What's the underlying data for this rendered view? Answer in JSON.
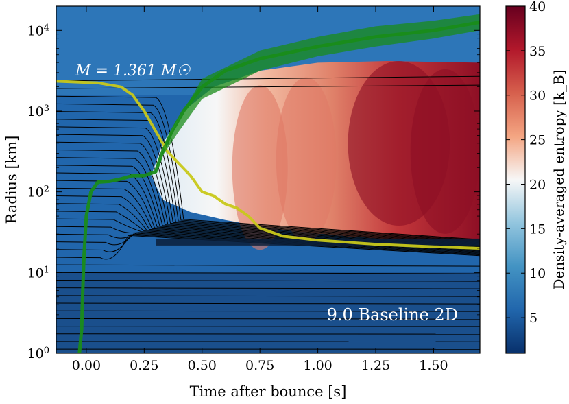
{
  "chart_data": {
    "type": "heatmap",
    "title": "",
    "xlabel": "Time after bounce [s]",
    "ylabel": "Radius [km]",
    "xlim": [
      -0.13,
      1.7
    ],
    "ylim_log10": [
      0,
      4.3
    ],
    "x_ticks": [
      {
        "v": 0.0,
        "label": "0.00"
      },
      {
        "v": 0.25,
        "label": "0.25"
      },
      {
        "v": 0.5,
        "label": "0.50"
      },
      {
        "v": 0.75,
        "label": "0.75"
      },
      {
        "v": 1.0,
        "label": "1.00"
      },
      {
        "v": 1.25,
        "label": "1.25"
      },
      {
        "v": 1.5,
        "label": "1.50"
      }
    ],
    "y_ticks": [
      {
        "exp": 0,
        "base": "10",
        "sup": "0"
      },
      {
        "exp": 1,
        "base": "10",
        "sup": "1"
      },
      {
        "exp": 2,
        "base": "10",
        "sup": "2"
      },
      {
        "exp": 3,
        "base": "10",
        "sup": "3"
      },
      {
        "exp": 4,
        "base": "10",
        "sup": "4"
      }
    ],
    "annotations": {
      "mass_label": "M = 1.361 M☉",
      "model_label": "9.0 Baseline 2D"
    },
    "colorbar": {
      "label": "Density-averaged entropy [k_B]",
      "min": 1,
      "max": 40,
      "ticks": [
        5,
        10,
        15,
        20,
        25,
        30,
        35,
        40
      ],
      "colors": [
        "#08306b",
        "#2166ac",
        "#4393c3",
        "#92c5de",
        "#f7f7f7",
        "#f4a582",
        "#d6604d",
        "#b2182b",
        "#67001f"
      ]
    },
    "series": [
      {
        "name": "shock radius",
        "color": "#1a8c1a",
        "points": [
          [
            -0.03,
            0.0
          ],
          [
            -0.02,
            0.3
          ],
          [
            -0.015,
            0.8
          ],
          [
            -0.01,
            1.2
          ],
          [
            0.0,
            1.7
          ],
          [
            0.02,
            2.0
          ],
          [
            0.05,
            2.12
          ],
          [
            0.1,
            2.13
          ],
          [
            0.15,
            2.16
          ],
          [
            0.2,
            2.2
          ],
          [
            0.25,
            2.2
          ],
          [
            0.3,
            2.25
          ],
          [
            0.33,
            2.5
          ],
          [
            0.37,
            2.75
          ],
          [
            0.42,
            3.0
          ],
          [
            0.5,
            3.3
          ],
          [
            0.6,
            3.5
          ],
          [
            0.75,
            3.65
          ],
          [
            1.0,
            3.8
          ],
          [
            1.25,
            3.92
          ],
          [
            1.5,
            4.0
          ],
          [
            1.7,
            4.1
          ]
        ]
      },
      {
        "name": "M = 1.361 Msun mass shell",
        "color": "#c8c81a",
        "points": [
          [
            -0.13,
            3.37
          ],
          [
            0.05,
            3.35
          ],
          [
            0.15,
            3.3
          ],
          [
            0.2,
            3.2
          ],
          [
            0.25,
            3.0
          ],
          [
            0.3,
            2.75
          ],
          [
            0.35,
            2.5
          ],
          [
            0.4,
            2.35
          ],
          [
            0.45,
            2.2
          ],
          [
            0.5,
            2.0
          ],
          [
            0.55,
            1.95
          ],
          [
            0.6,
            1.85
          ],
          [
            0.65,
            1.8
          ],
          [
            0.7,
            1.7
          ],
          [
            0.75,
            1.55
          ],
          [
            0.85,
            1.45
          ],
          [
            1.0,
            1.4
          ],
          [
            1.25,
            1.35
          ],
          [
            1.5,
            1.32
          ],
          [
            1.7,
            1.3
          ]
        ]
      }
    ]
  }
}
